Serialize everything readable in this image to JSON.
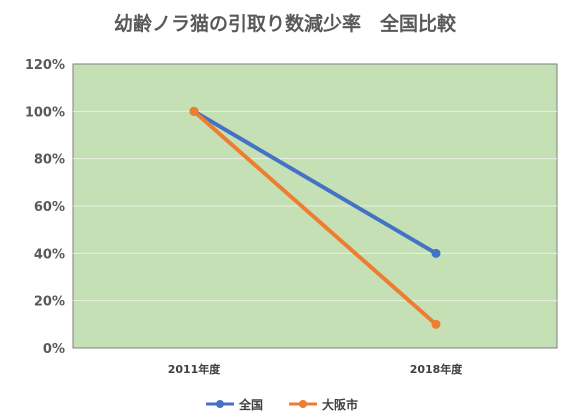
{
  "chart_data": {
    "type": "line",
    "title": "幼齢ノラ猫の引取り数減少率　全国比較",
    "xlabel": "",
    "ylabel": "",
    "categories": [
      "2011年度",
      "2018年度"
    ],
    "ylim": [
      0,
      120
    ],
    "yticks": [
      0,
      20,
      40,
      60,
      80,
      100,
      120
    ],
    "ytick_labels": [
      "0%",
      "20%",
      "40%",
      "60%",
      "80%",
      "100%",
      "120%"
    ],
    "grid": true,
    "legend_position": "bottom",
    "plot_background": "#c5e0b4",
    "series": [
      {
        "name": "全国",
        "values": [
          100,
          40
        ],
        "color": "#4472c4"
      },
      {
        "name": "大阪市",
        "values": [
          100,
          10
        ],
        "color": "#ed7d31"
      }
    ]
  }
}
